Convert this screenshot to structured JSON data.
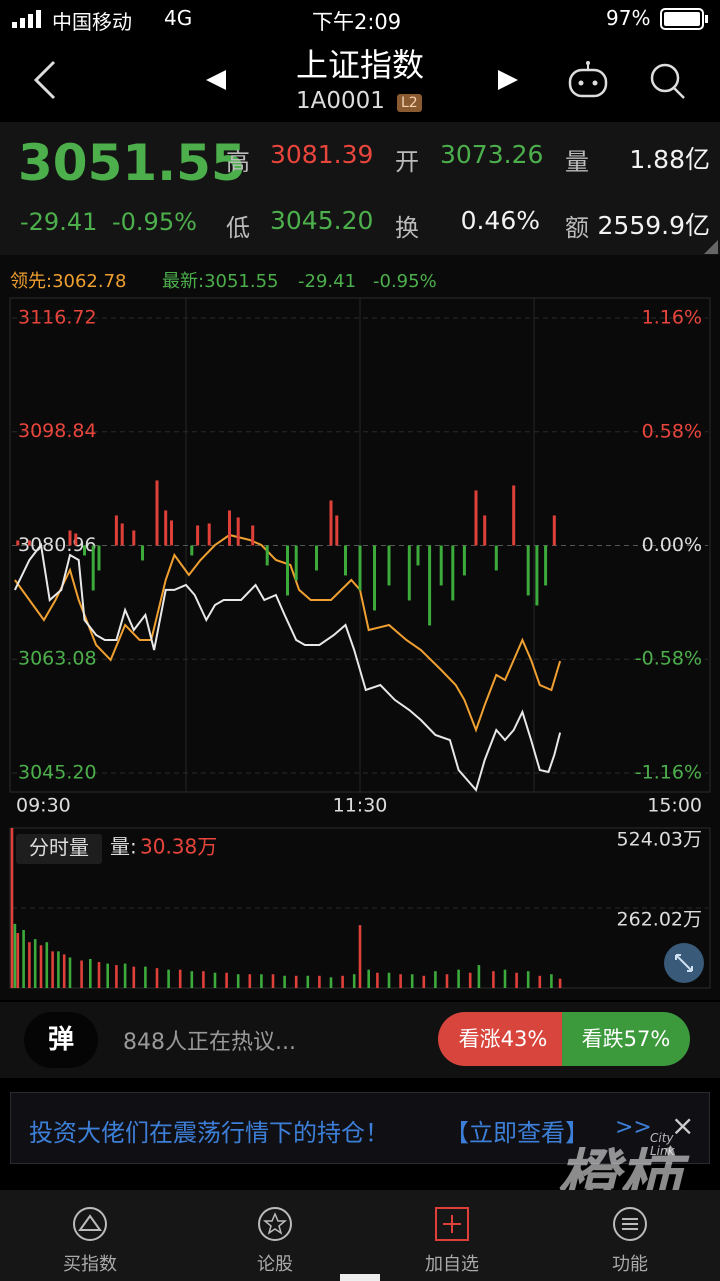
{
  "status_bar": {
    "carrier": "中国移动",
    "network": "4G",
    "time": "下午2:09",
    "battery": "97%"
  },
  "header": {
    "title": "上证指数",
    "code": "1A0001",
    "badge": "L2"
  },
  "quote": {
    "price": "3051.55",
    "change": "-29.41",
    "change_pct": "-0.95%",
    "fields": [
      {
        "label": "高",
        "value": "3081.39"
      },
      {
        "label": "开",
        "value": "3073.26"
      },
      {
        "label": "量",
        "value": "1.88亿"
      },
      {
        "label": "低",
        "value": "3045.20"
      },
      {
        "label": "换",
        "value": "0.46%"
      },
      {
        "label": "额",
        "value": "2559.9亿"
      }
    ]
  },
  "chart_data": [
    {
      "type": "line",
      "legend_extra": [
        "-29.41",
        "-0.95%"
      ],
      "xlim": [
        0,
        240
      ],
      "xticks": [
        {
          "value": 0,
          "label": "09:30"
        },
        {
          "value": 120,
          "label": "11:30"
        },
        {
          "value": 240,
          "label": "15:00"
        }
      ],
      "ylim": [
        3042.21,
        3118.76
      ],
      "yticks": [
        3116.72,
        3098.84,
        3080.96,
        3063.08,
        {
          "value": 3045.2,
          "label": "3045.20"
        }
      ],
      "y2lim": [
        -1.258,
        1.227
      ],
      "y2ticks": [
        {
          "value": 1.16,
          "label": "1.16%"
        },
        {
          "value": 0.58,
          "label": "0.58%"
        },
        {
          "value": 0,
          "label": "0.00%"
        },
        {
          "value": -0.58,
          "label": "-0.58%"
        },
        {
          "value": -1.16,
          "label": "-1.16%"
        }
      ],
      "grid": true,
      "series": [
        {
          "name": "领先:3062.78",
          "color": "#f0a030",
          "x": [
            1,
            6,
            11,
            15,
            20,
            23,
            29,
            34,
            39,
            44,
            48,
            53,
            56,
            61,
            65,
            70,
            75,
            82,
            86,
            91,
            96,
            99,
            103,
            110,
            117,
            120,
            123,
            130,
            136,
            141,
            148,
            153,
            156,
            160,
            163,
            167,
            170,
            173,
            176,
            179,
            182,
            186,
            189
          ],
          "values": [
            3075.54,
            3072.39,
            3069.25,
            3072.39,
            3077.11,
            3072.39,
            3065.32,
            3062.96,
            3068.46,
            3066.11,
            3066.11,
            3075.54,
            3079.47,
            3076.32,
            3078.68,
            3081.04,
            3082.61,
            3081.82,
            3081.04,
            3078.68,
            3077.9,
            3073.97,
            3072.39,
            3072.39,
            3075.54,
            3073.97,
            3067.68,
            3068.46,
            3066.11,
            3064.53,
            3061.39,
            3059.03,
            3056.68,
            3051.96,
            3055.89,
            3060.61,
            3059.82,
            3062.96,
            3066.11,
            3062.96,
            3059.03,
            3058.25,
            3062.78
          ]
        },
        {
          "name": "最新:3051.55",
          "color": "#e8e8e8",
          "x": [
            1,
            6,
            10,
            13,
            17,
            20,
            23,
            25,
            29,
            32,
            36,
            39,
            42,
            46,
            49,
            53,
            56,
            60,
            63,
            67,
            70,
            73,
            79,
            84,
            87,
            91,
            94,
            98,
            101,
            106,
            111,
            115,
            118,
            122,
            127,
            132,
            137,
            141,
            146,
            151,
            154,
            160,
            163,
            167,
            170,
            173,
            176,
            179,
            182,
            185,
            187,
            189
          ],
          "values": [
            3073.97,
            3078.68,
            3081.04,
            3072.39,
            3073.97,
            3079.47,
            3078.68,
            3069.25,
            3066.89,
            3066.11,
            3066.11,
            3070.82,
            3067.68,
            3070.04,
            3064.53,
            3073.97,
            3073.97,
            3074.75,
            3073.18,
            3069.25,
            3071.61,
            3072.39,
            3072.39,
            3074.75,
            3072.39,
            3073.18,
            3070.04,
            3066.11,
            3065.32,
            3065.32,
            3066.89,
            3068.46,
            3064.53,
            3058.25,
            3059.03,
            3056.68,
            3055.1,
            3053.53,
            3051.17,
            3050.39,
            3045.67,
            3042.53,
            3047.24,
            3051.96,
            3050.39,
            3051.96,
            3054.79,
            3050.39,
            3045.67,
            3045.36,
            3048.03,
            3051.55
          ]
        }
      ]
    },
    {
      "type": "bar",
      "xlim": [
        0,
        240
      ],
      "colors": {
        "up": "#e0403a",
        "down": "#3cab3c"
      },
      "x": [
        2,
        6,
        20,
        22,
        25,
        28,
        30,
        36,
        38,
        42,
        45,
        50,
        53,
        55,
        62,
        64,
        68,
        75,
        78,
        83,
        88,
        95,
        98,
        105,
        110,
        112,
        115,
        120,
        125,
        130,
        137,
        140,
        144,
        148,
        152,
        156,
        160,
        163,
        167,
        173,
        178,
        181,
        184,
        187
      ],
      "values": [
        5,
        5,
        15,
        12,
        -10,
        -45,
        -25,
        30,
        22,
        15,
        -15,
        65,
        35,
        25,
        -10,
        20,
        22,
        35,
        28,
        20,
        -20,
        -50,
        -35,
        -25,
        45,
        30,
        -30,
        -45,
        -65,
        -40,
        -55,
        -20,
        -80,
        -40,
        -55,
        -30,
        55,
        30,
        -25,
        60,
        -50,
        -60,
        -40,
        30
      ]
    },
    {
      "type": "bar",
      "label": "分时量",
      "legend": "量:",
      "current": "30.38万",
      "xlim": [
        0,
        240
      ],
      "ylim": [
        0,
        524.03
      ],
      "yticks": [
        {
          "value": 262.02,
          "label": "262.02万"
        },
        {
          "value": 524.03,
          "label": "524.03万"
        }
      ],
      "series": [
        {
          "color": "#e0403a",
          "x": [
            0,
            2,
            6,
            10,
            14,
            18,
            24,
            30,
            36,
            42,
            50,
            58,
            66,
            74,
            82,
            90,
            98,
            106,
            114,
            120,
            126,
            134,
            142,
            150,
            158,
            166,
            174,
            182,
            189
          ],
          "values": [
            524.03,
            180,
            150,
            140,
            120,
            110,
            90,
            85,
            75,
            70,
            65,
            60,
            55,
            50,
            45,
            45,
            40,
            40,
            40,
            206,
            50,
            45,
            40,
            45,
            50,
            55,
            50,
            40,
            30.38
          ]
        },
        {
          "color": "#3cab3c",
          "x": [
            1,
            4,
            8,
            12,
            16,
            20,
            27,
            33,
            39,
            46,
            54,
            62,
            70,
            78,
            86,
            94,
            102,
            110,
            118,
            123,
            130,
            138,
            146,
            154,
            161,
            170,
            178,
            186
          ],
          "values": [
            210,
            190,
            160,
            150,
            120,
            100,
            95,
            80,
            80,
            70,
            60,
            55,
            50,
            45,
            45,
            40,
            40,
            35,
            45,
            60,
            50,
            45,
            55,
            60,
            75,
            60,
            55,
            45
          ]
        }
      ]
    }
  ],
  "discussion": {
    "button": "弹",
    "text": "848人正在热议...",
    "bull": "看涨43%",
    "bear": "看跌57%"
  },
  "banner": {
    "text": "投资大佬们在震荡行情下的持仓！",
    "action": "【立即查看】",
    "arrow": ">>",
    "close": "×"
  },
  "watermark": {
    "text": "橙柿",
    "sub": "City Link"
  },
  "tabs": [
    "买指数",
    "论股",
    "加自选",
    "功能"
  ]
}
